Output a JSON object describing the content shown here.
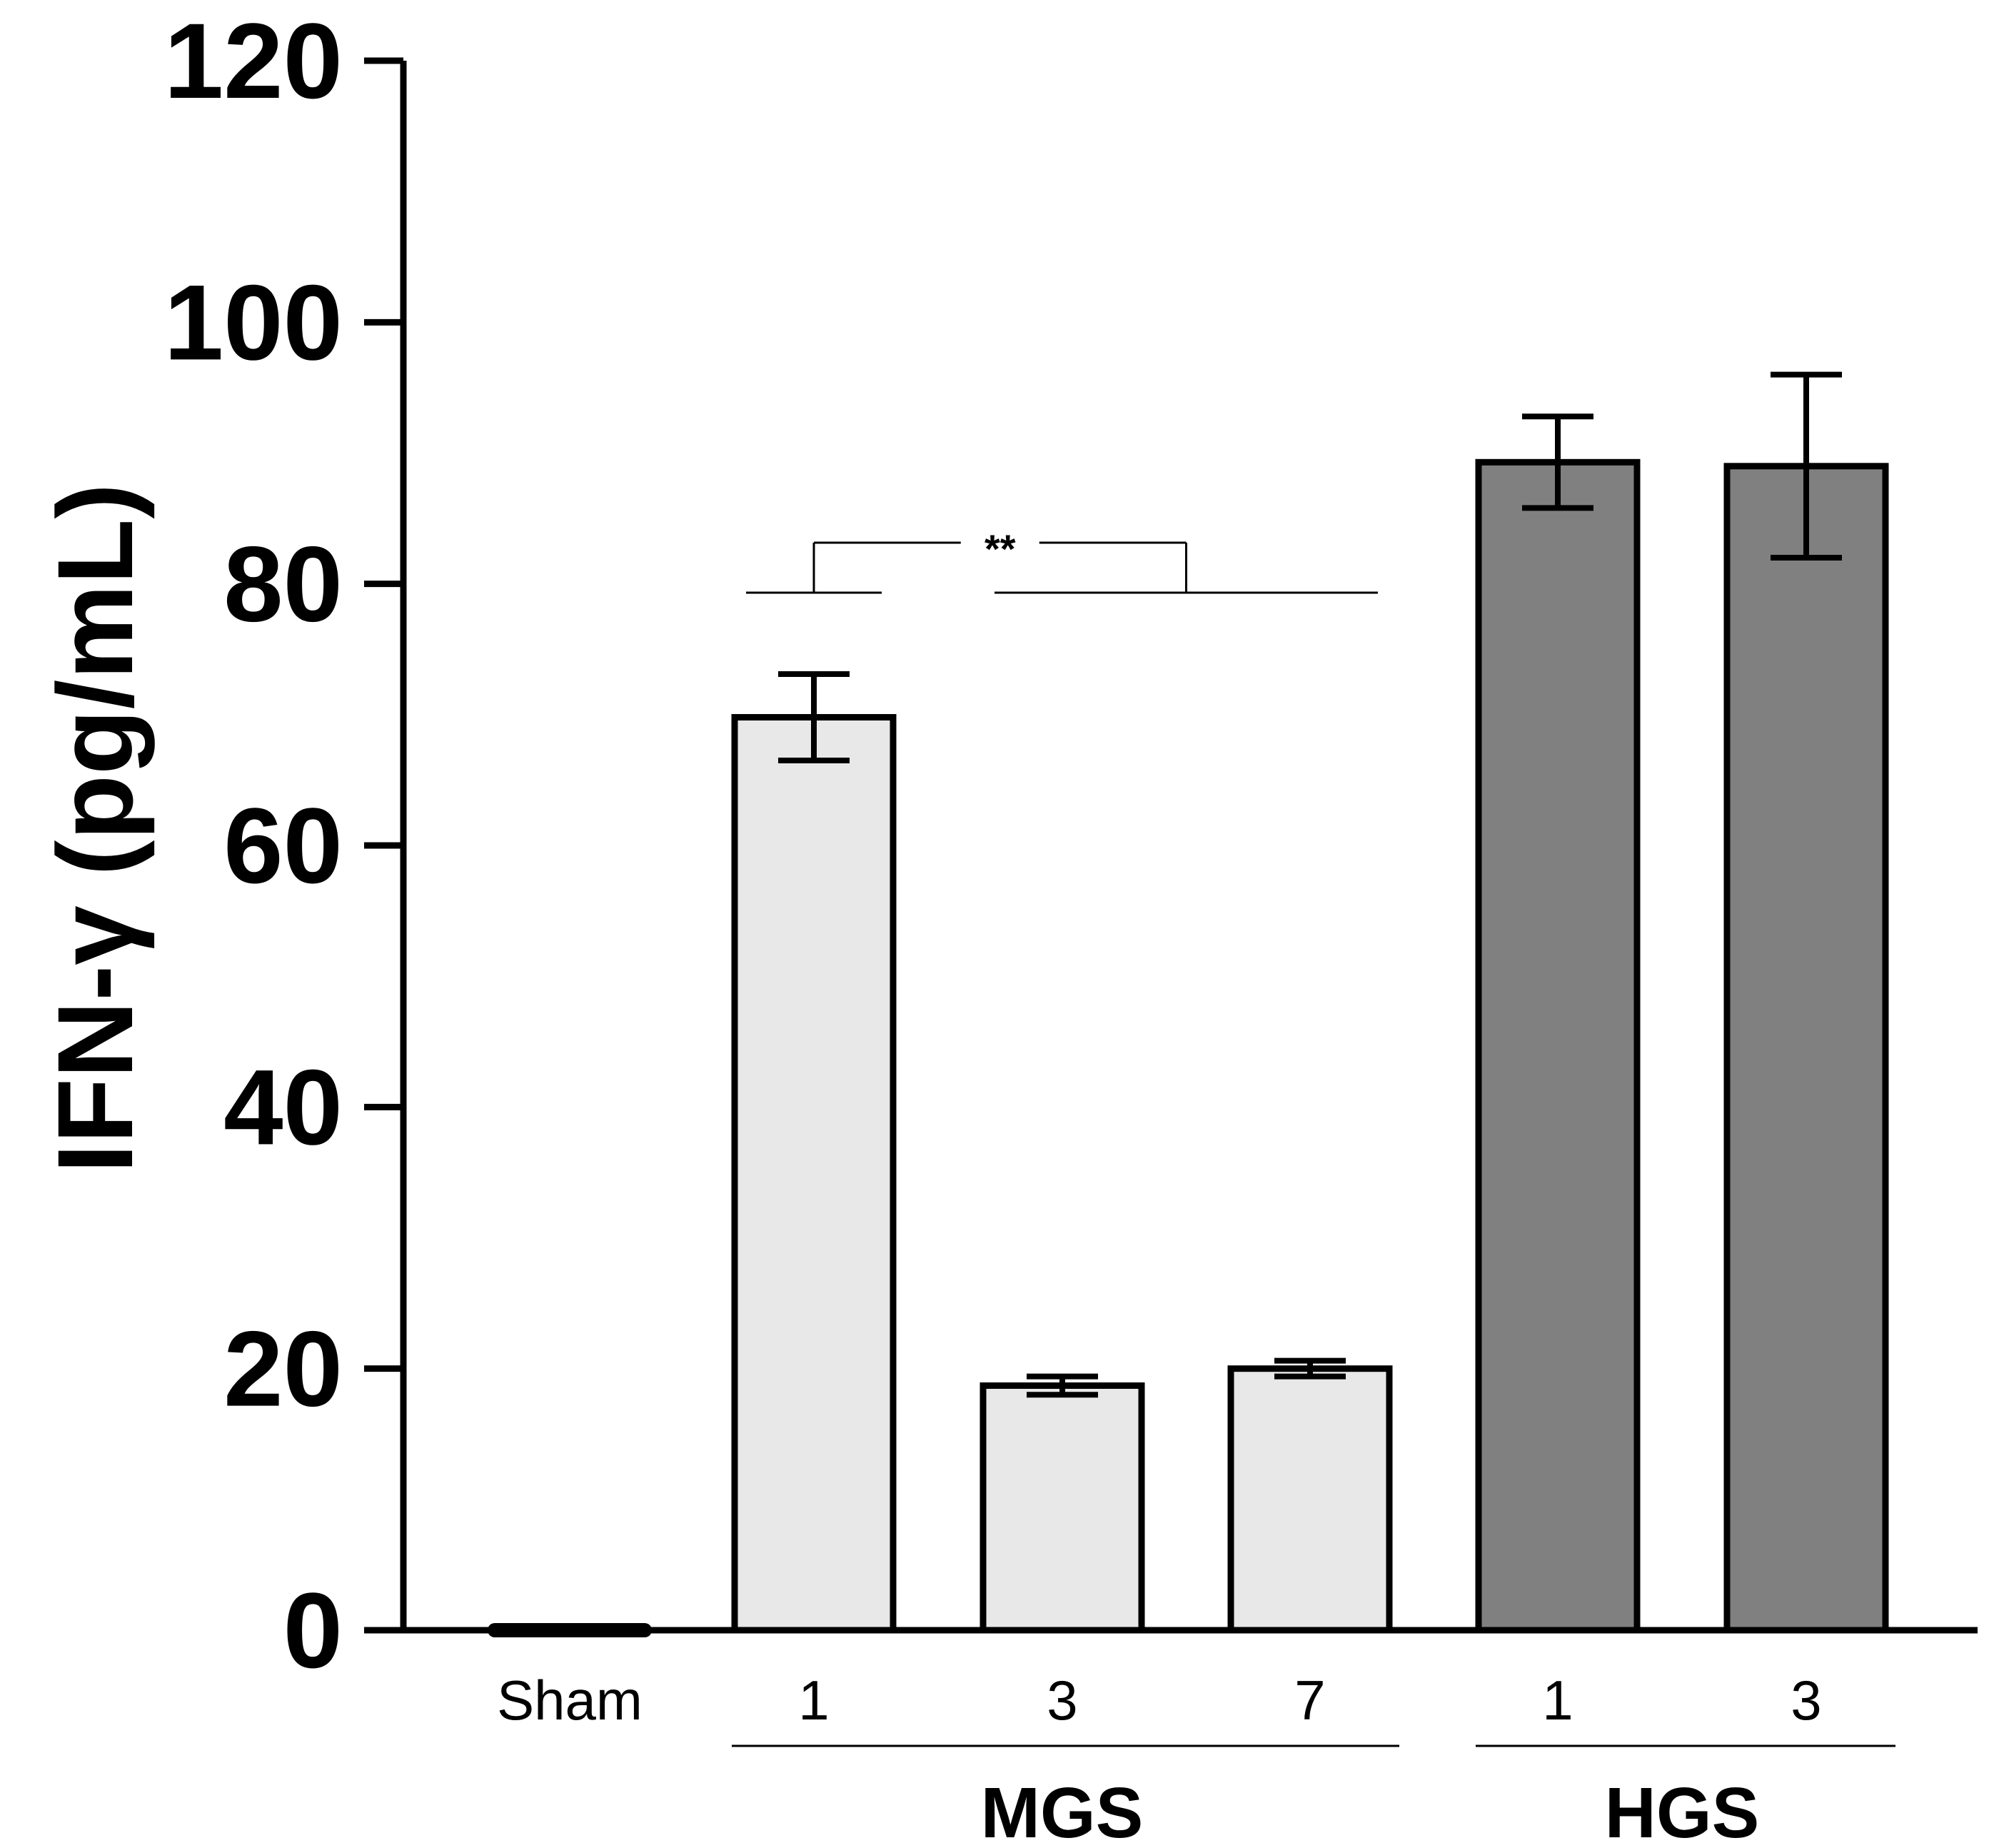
{
  "chart_data": {
    "type": "bar",
    "ylabel": "IFN-γ (pg/mL)",
    "ylim": [
      0,
      120
    ],
    "yticks": [
      0,
      20,
      40,
      60,
      80,
      100,
      120
    ],
    "categories": [
      "Sham",
      "1",
      "3",
      "7",
      "1",
      "3"
    ],
    "values": [
      0,
      69.8,
      18.7,
      20.0,
      89.3,
      89.0
    ],
    "errors": [
      0,
      3.3,
      0.7,
      0.6,
      3.5,
      7.0
    ],
    "groups": [
      {
        "label": "MGS",
        "start": 1,
        "end": 3
      },
      {
        "label": "HGS",
        "start": 4,
        "end": 5
      }
    ],
    "colors": {
      "sham": "#000000",
      "mgs": "#e8e8e8",
      "hgs": "#808080"
    },
    "annotations": [
      {
        "text": "**",
        "from": 1,
        "to_start": 2,
        "to_end": 3
      }
    ]
  }
}
